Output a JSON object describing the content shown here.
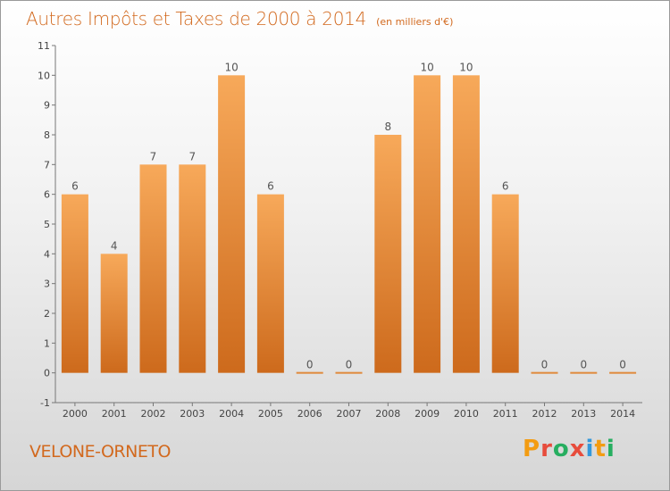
{
  "header": {
    "title": "Autres Impôts et Taxes de 2000 à 2014",
    "unit": "(en milliers d'€)"
  },
  "footer": {
    "commune": "VELONE-ORNETO",
    "logo_text": "Proxiti"
  },
  "colors": {
    "title": "#d2691e",
    "bar_top": "#f7a95a",
    "bar_bottom": "#cd6a1c",
    "logo": [
      "#f39c12",
      "#e74c3c",
      "#27ae60",
      "#e74c3c",
      "#3498db",
      "#f39c12",
      "#27ae60"
    ]
  },
  "chart_data": {
    "type": "bar",
    "categories": [
      "2000",
      "2001",
      "2002",
      "2003",
      "2004",
      "2005",
      "2006",
      "2007",
      "2008",
      "2009",
      "2010",
      "2011",
      "2012",
      "2013",
      "2014"
    ],
    "values": [
      6,
      4,
      7,
      7,
      10,
      6,
      0,
      0,
      8,
      10,
      10,
      6,
      0,
      0,
      0
    ],
    "data_labels": [
      "6",
      "4",
      "7",
      "7",
      "10",
      "6",
      "0",
      "0",
      "8",
      "10",
      "10",
      "6",
      "0",
      "0",
      "0"
    ],
    "ylim": [
      -1,
      11
    ],
    "yticks": [
      "-1",
      "0",
      "1",
      "2",
      "3",
      "4",
      "5",
      "6",
      "7",
      "8",
      "9",
      "10",
      "11"
    ],
    "grid": false,
    "xlabel": "",
    "ylabel": ""
  }
}
